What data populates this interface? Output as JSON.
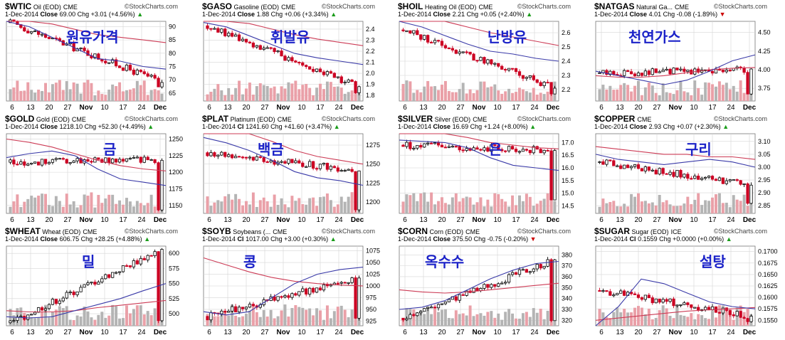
{
  "brand": "StockCharts.com",
  "date": "1-Dec-2014",
  "x_ticks": [
    "6",
    "13",
    "20",
    "27",
    "Nov",
    "10",
    "17",
    "24",
    "Dec"
  ],
  "colors": {
    "up": "#000000",
    "down": "#cc0022",
    "ma_short": "#3a3aa8",
    "ma_long": "#cc3b55",
    "vol_up": "#b4b4b4",
    "vol_down": "#eaa0a8",
    "grid": "#d6d6d6"
  },
  "chart_data": [
    {
      "type": "candlestick",
      "symbol": "$WTIC",
      "desc": "Oil (EOD)",
      "exchange": "CME",
      "stat_label": "Close",
      "stat_value": "69.00",
      "chg_text": "Chg +3.01 (+4.56%)",
      "direction": "up",
      "korean": "원유가격",
      "yticks": [
        "90",
        "85",
        "80",
        "75",
        "70",
        "65"
      ],
      "ylim": [
        62,
        92
      ],
      "start": 91.5,
      "end": 69.0,
      "low": 65.5,
      "ma_short": [
        93,
        90,
        86,
        82,
        78,
        77,
        75,
        74
      ],
      "ma_long": [
        95,
        93,
        91,
        89,
        87,
        86,
        85,
        84
      ]
    },
    {
      "type": "candlestick",
      "symbol": "$GASO",
      "desc": "Gasoline (EOD)",
      "exchange": "CME",
      "stat_label": "Close",
      "stat_value": "1.88",
      "chg_text": "Chg +0.06 (+3.34%)",
      "direction": "up",
      "korean": "휘발유",
      "yticks": [
        "2.4",
        "2.3",
        "2.2",
        "2.1",
        "2.0",
        "1.9",
        "1.8"
      ],
      "ylim": [
        1.75,
        2.47
      ],
      "start": 2.43,
      "end": 1.88,
      "low": 1.79,
      "ma_short": [
        2.46,
        2.42,
        2.34,
        2.26,
        2.18,
        2.14,
        2.11,
        2.08
      ],
      "ma_long": [
        2.55,
        2.5,
        2.45,
        2.4,
        2.35,
        2.31,
        2.28,
        2.25
      ]
    },
    {
      "type": "candlestick",
      "symbol": "$HOIL",
      "desc": "Heating Oil (EOD)",
      "exchange": "CME",
      "stat_label": "Close",
      "stat_value": "2.21",
      "chg_text": "Chg +0.05 (+2.40%)",
      "direction": "up",
      "korean": "난방유",
      "yticks": [
        "2.6",
        "2.5",
        "2.4",
        "2.3",
        "2.2"
      ],
      "ylim": [
        2.12,
        2.68
      ],
      "start": 2.62,
      "end": 2.21,
      "low": 2.15,
      "ma_short": [
        2.68,
        2.64,
        2.58,
        2.52,
        2.47,
        2.45,
        2.42,
        2.4
      ],
      "ma_long": [
        2.75,
        2.72,
        2.68,
        2.64,
        2.6,
        2.57,
        2.54,
        2.51
      ]
    },
    {
      "type": "candlestick",
      "symbol": "$NATGAS",
      "desc": "Natural Ga...",
      "exchange": "CME",
      "stat_label": "Close",
      "stat_value": "4.01",
      "chg_text": "Chg -0.08 (-1.89%)",
      "direction": "down",
      "korean": "천연가스",
      "yticks": [
        "4.50",
        "4.25",
        "4.00",
        "3.75"
      ],
      "ylim": [
        3.58,
        4.65
      ],
      "start": 3.95,
      "end": 4.01,
      "low": 3.65,
      "ma_short": [
        3.98,
        3.92,
        3.86,
        3.8,
        3.86,
        3.98,
        4.12,
        4.2
      ],
      "ma_long": [
        3.92,
        3.9,
        3.9,
        3.92,
        3.96,
        4.0,
        4.02,
        4.03
      ]
    },
    {
      "type": "candlestick",
      "symbol": "$GOLD",
      "desc": "Gold (EOD)",
      "exchange": "CME",
      "stat_label": "Close",
      "stat_value": "1218.10",
      "chg_text": "Chg +52.30 (+4.49%)",
      "direction": "up",
      "korean": "금",
      "yticks": [
        "1250",
        "1225",
        "1200",
        "1175",
        "1150"
      ],
      "ylim": [
        1138,
        1258
      ],
      "start": 1215,
      "end": 1218,
      "low": 1142,
      "ma_short": [
        1222,
        1228,
        1232,
        1225,
        1205,
        1190,
        1185,
        1180
      ],
      "ma_long": [
        1250,
        1245,
        1238,
        1228,
        1218,
        1210,
        1205,
        1202
      ]
    },
    {
      "type": "candlestick",
      "symbol": "$PLAT",
      "desc": "Platinum (EOD)",
      "exchange": "CME",
      "stat_label": "Cl",
      "stat_value": "1241.60",
      "chg_text": "Chg +41.60 (+3.47%)",
      "direction": "up",
      "korean": "백금",
      "yticks": [
        "1275",
        "1250",
        "1225",
        "1200"
      ],
      "ylim": [
        1185,
        1290
      ],
      "start": 1265,
      "end": 1241,
      "low": 1190,
      "ma_short": [
        1285,
        1278,
        1268,
        1255,
        1240,
        1232,
        1228,
        1222
      ],
      "ma_long": [
        1310,
        1300,
        1290,
        1280,
        1268,
        1260,
        1255,
        1250
      ]
    },
    {
      "type": "candlestick",
      "symbol": "$SILVER",
      "desc": "Silver (EOD)",
      "exchange": "CME",
      "stat_label": "Close",
      "stat_value": "16.69",
      "chg_text": "Chg +1.24 (+8.00%)",
      "direction": "up",
      "korean": "은",
      "yticks": [
        "17.0",
        "16.5",
        "16.0",
        "15.5",
        "15.0",
        "14.5"
      ],
      "ylim": [
        14.2,
        17.35
      ],
      "start": 16.9,
      "end": 16.69,
      "low": 14.5,
      "ma_short": [
        17.1,
        17.05,
        17.0,
        16.8,
        16.4,
        16.1,
        16.0,
        15.9
      ],
      "ma_long": [
        17.6,
        17.5,
        17.4,
        17.2,
        17.0,
        16.9,
        16.8,
        16.75
      ]
    },
    {
      "type": "candlestick",
      "symbol": "$COPPER",
      "desc": "",
      "exchange": "CME",
      "stat_label": "Close",
      "stat_value": "2.93",
      "chg_text": "Chg +0.07 (+2.30%)",
      "direction": "up",
      "korean": "구리",
      "yticks": [
        "3.10",
        "3.05",
        "3.00",
        "2.95",
        "2.90",
        "2.85"
      ],
      "ylim": [
        2.82,
        3.13
      ],
      "start": 3.02,
      "end": 2.93,
      "low": 2.84,
      "ma_short": [
        3.05,
        3.03,
        3.02,
        3.01,
        3.02,
        3.03,
        3.02,
        3.0
      ],
      "ma_long": [
        3.08,
        3.07,
        3.06,
        3.05,
        3.05,
        3.04,
        3.04,
        3.03
      ]
    },
    {
      "type": "candlestick",
      "symbol": "$WHEAT",
      "desc": "Wheat (EOD)",
      "exchange": "CME",
      "stat_label": "Close",
      "stat_value": "606.75",
      "chg_text": "Chg +28.25 (+4.88%)",
      "direction": "up",
      "korean": "밀",
      "yticks": [
        "600",
        "575",
        "550",
        "525",
        "500"
      ],
      "ylim": [
        480,
        612
      ],
      "start": 485,
      "end": 606.75,
      "low": 482,
      "ma_short": [
        495,
        493,
        495,
        505,
        515,
        525,
        538,
        550
      ],
      "ma_long": [
        505,
        503,
        503,
        505,
        510,
        514,
        518,
        522
      ]
    },
    {
      "type": "candlestick",
      "symbol": "$SOYB",
      "desc": "Soybeans (...",
      "exchange": "CME",
      "stat_label": "Cl",
      "stat_value": "1017.00",
      "chg_text": "Chg +3.00 (+0.30%)",
      "direction": "up",
      "korean": "콩",
      "yticks": [
        "1075",
        "1050",
        "1025",
        "1000",
        "975",
        "950",
        "925"
      ],
      "ylim": [
        915,
        1085
      ],
      "start": 935,
      "end": 1017,
      "low": 925,
      "ma_short": [
        945,
        938,
        945,
        975,
        1005,
        1025,
        1035,
        1040
      ],
      "ma_long": [
        1060,
        1045,
        1030,
        1018,
        1010,
        1005,
        1002,
        1000
      ]
    },
    {
      "type": "candlestick",
      "symbol": "$CORN",
      "desc": "Corn (EOD)",
      "exchange": "CME",
      "stat_label": "Close",
      "stat_value": "375.50",
      "chg_text": "Chg -0.75 (-0.20%)",
      "direction": "down",
      "korean": "옥수수",
      "yticks": [
        "380",
        "370",
        "360",
        "350",
        "340",
        "330",
        "320"
      ],
      "ylim": [
        315,
        388
      ],
      "start": 322,
      "end": 375.5,
      "low": 318,
      "ma_short": [
        330,
        332,
        338,
        348,
        358,
        366,
        372,
        374
      ],
      "ma_long": [
        348,
        346,
        345,
        346,
        348,
        350,
        352,
        354
      ]
    },
    {
      "type": "candlestick",
      "symbol": "$SUGAR",
      "desc": "Sugar (EOD)",
      "exchange": "ICE",
      "stat_label": "Cl",
      "stat_value": "0.1559",
      "chg_text": "Chg +0.0000 (+0.00%)",
      "direction": "up",
      "korean": "설탕",
      "yticks": [
        "0.1700",
        "0.1675",
        "0.1650",
        "0.1625",
        "0.1600",
        "0.1575",
        "0.1550"
      ],
      "ylim": [
        0.1538,
        0.1712
      ],
      "start": 0.1615,
      "end": 0.1559,
      "low": 0.1545,
      "ma_short": [
        0.152,
        0.158,
        0.164,
        0.163,
        0.161,
        0.159,
        0.158,
        0.1575
      ],
      "ma_long": [
        0.155,
        0.1555,
        0.156,
        0.1565,
        0.157,
        0.1573,
        0.1575,
        0.1578
      ]
    }
  ]
}
